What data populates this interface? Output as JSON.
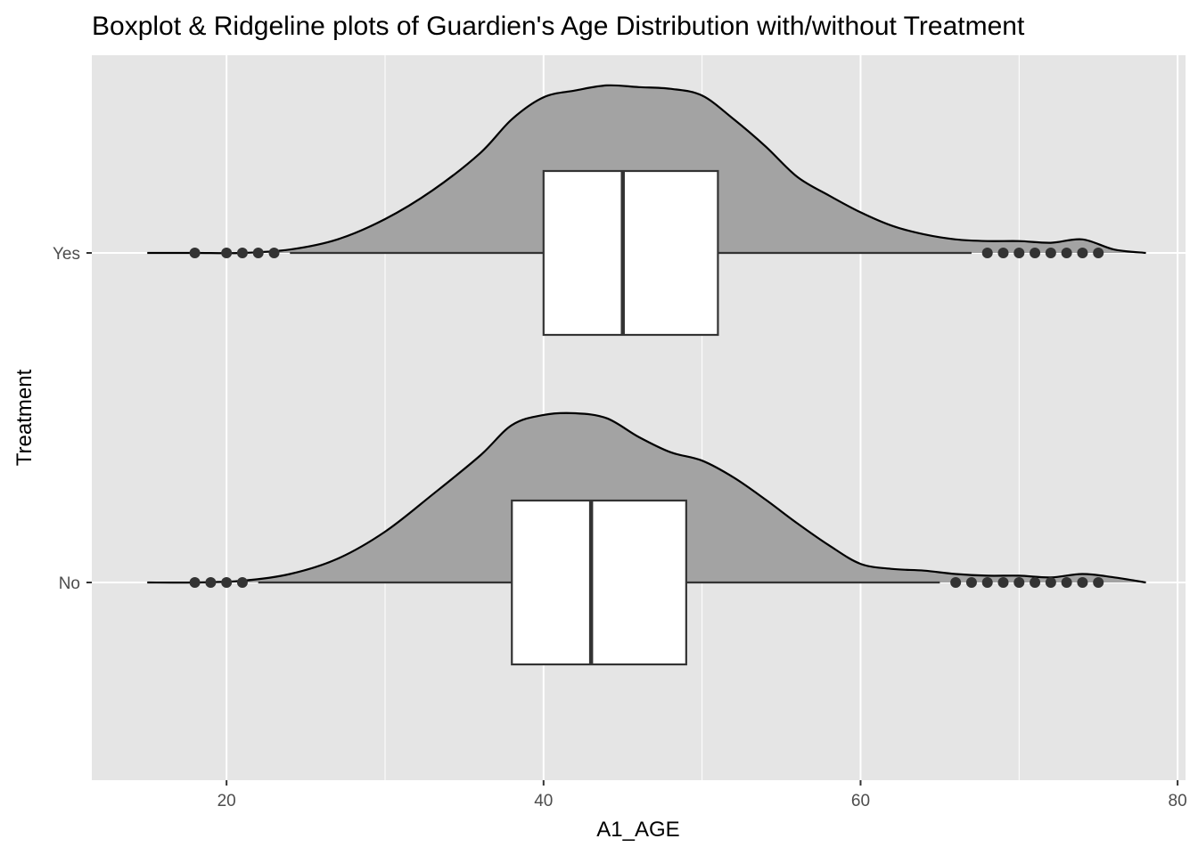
{
  "chart_data": {
    "type": "boxplot-ridgeline",
    "title": "Boxplot & Ridgeline plots of Guardien's Age Distribution with/without Treatment",
    "xlabel": "A1_AGE",
    "ylabel": "Treatment",
    "xlim": [
      11.5,
      80.5
    ],
    "x_ticks": [
      20,
      40,
      60,
      80
    ],
    "x_minor_ticks": [
      30,
      50,
      70
    ],
    "grid": true,
    "colors": {
      "panel": "#e5e5e5",
      "grid": "#ffffff",
      "density_fill": "#a3a3a3",
      "box_fill": "#ffffff",
      "stroke": "#000000",
      "box_stroke": "#333333",
      "outlier": "#333333"
    },
    "categories": [
      "No",
      "Yes"
    ],
    "series": [
      {
        "name": "No",
        "box": {
          "min": 22,
          "q1": 38,
          "median": 43,
          "q3": 49,
          "max": 65
        },
        "outliers": [
          18,
          19,
          20,
          21,
          66,
          67,
          68,
          69,
          70,
          71,
          72,
          73,
          74,
          75
        ],
        "density": [
          [
            15,
            0.0
          ],
          [
            18,
            0.0
          ],
          [
            21,
            0.01
          ],
          [
            24,
            0.05
          ],
          [
            27,
            0.14
          ],
          [
            30,
            0.3
          ],
          [
            33,
            0.52
          ],
          [
            36,
            0.75
          ],
          [
            38,
            0.93
          ],
          [
            40,
            0.99
          ],
          [
            42,
            1.0
          ],
          [
            44,
            0.97
          ],
          [
            46,
            0.86
          ],
          [
            48,
            0.77
          ],
          [
            50,
            0.72
          ],
          [
            52,
            0.62
          ],
          [
            54,
            0.49
          ],
          [
            56,
            0.35
          ],
          [
            58,
            0.22
          ],
          [
            60,
            0.11
          ],
          [
            62,
            0.08
          ],
          [
            64,
            0.07
          ],
          [
            66,
            0.05
          ],
          [
            68,
            0.04
          ],
          [
            70,
            0.04
          ],
          [
            72,
            0.03
          ],
          [
            74,
            0.05
          ],
          [
            76,
            0.03
          ],
          [
            78,
            0.0
          ]
        ]
      },
      {
        "name": "Yes",
        "box": {
          "min": 24,
          "q1": 40,
          "median": 45,
          "q3": 51,
          "max": 67
        },
        "outliers": [
          18,
          20,
          21,
          22,
          23,
          68,
          69,
          70,
          71,
          72,
          73,
          74,
          75
        ],
        "density": [
          [
            15,
            0.0
          ],
          [
            18,
            0.0
          ],
          [
            21,
            0.0
          ],
          [
            24,
            0.02
          ],
          [
            27,
            0.08
          ],
          [
            30,
            0.2
          ],
          [
            33,
            0.37
          ],
          [
            36,
            0.59
          ],
          [
            38,
            0.79
          ],
          [
            40,
            0.92
          ],
          [
            42,
            0.96
          ],
          [
            44,
            0.99
          ],
          [
            46,
            0.98
          ],
          [
            48,
            0.97
          ],
          [
            50,
            0.93
          ],
          [
            52,
            0.79
          ],
          [
            54,
            0.63
          ],
          [
            56,
            0.45
          ],
          [
            58,
            0.34
          ],
          [
            60,
            0.24
          ],
          [
            62,
            0.16
          ],
          [
            64,
            0.11
          ],
          [
            66,
            0.08
          ],
          [
            68,
            0.07
          ],
          [
            70,
            0.07
          ],
          [
            72,
            0.06
          ],
          [
            74,
            0.08
          ],
          [
            76,
            0.02
          ],
          [
            78,
            0.0
          ]
        ]
      }
    ]
  }
}
